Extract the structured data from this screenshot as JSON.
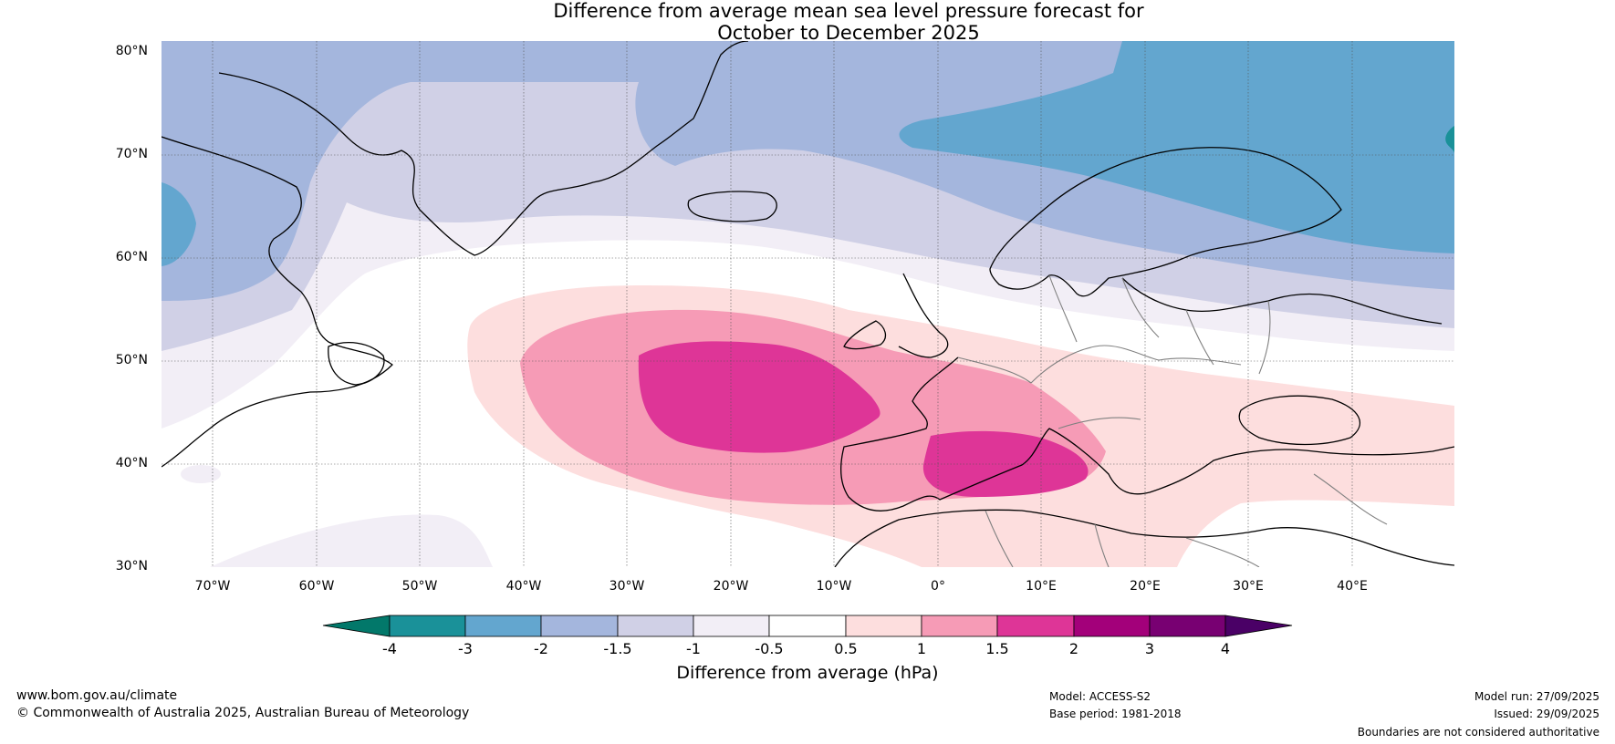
{
  "title": {
    "line1": "Difference from average mean sea level pressure forecast for",
    "line2": "October to December 2025"
  },
  "map": {
    "region": "North Atlantic and Europe",
    "lat_labels": [
      "80°N",
      "70°N",
      "60°N",
      "50°N",
      "40°N",
      "30°N"
    ],
    "lon_labels": [
      "70°W",
      "60°W",
      "50°W",
      "40°W",
      "30°W",
      "20°W",
      "10°W",
      "0°",
      "10°E",
      "20°E",
      "30°E",
      "40°E"
    ],
    "ocean_color": "#ffffff",
    "coast_color": "#000000",
    "border_color": "#808080"
  },
  "colorbar": {
    "label": "Difference from average (hPa)",
    "ticks": [
      "-4",
      "-3",
      "-2",
      "-1.5",
      "-1",
      "-0.5",
      "0.5",
      "1",
      "1.5",
      "2",
      "3",
      "4"
    ],
    "below_color": "#02786a",
    "above_color": "#4a0066",
    "colors": [
      "#1a9199",
      "#63a6cf",
      "#a4b6dd",
      "#d0d0e6",
      "#f2eef6",
      "#ffffff",
      "#fddede",
      "#f69bb6",
      "#de3597",
      "#a3007a",
      "#780072"
    ]
  },
  "footer": {
    "website": "www.bom.gov.au/climate",
    "copyright": "© Commonwealth of Australia 2025, Australian Bureau of Meteorology",
    "model": "Model: ACCESS-S2",
    "base_period": "Base period: 1981-2018",
    "model_run": "Model run: 27/09/2025",
    "issued": "Issued: 29/09/2025",
    "boundaries": "Boundaries are not considered authoritative"
  }
}
